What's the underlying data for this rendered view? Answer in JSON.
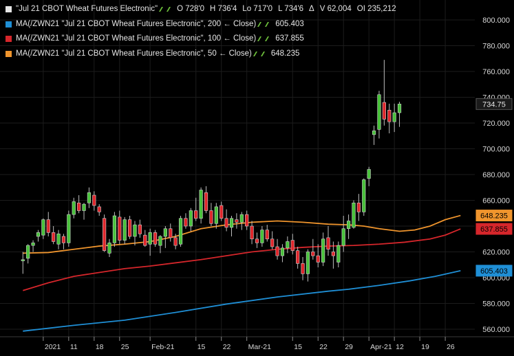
{
  "legend": {
    "main": {
      "label": "\"Jul 21 CBOT Wheat Futures Electronic\"",
      "open": "O 728'0",
      "high": "H 736'4",
      "low": "Lo 717'0",
      "last": "L 734'6",
      "change_symbol": "Δ",
      "volume": "V 62,004",
      "open_interest": "OI 235,212",
      "color": "#e6e6e6"
    },
    "ma200": {
      "label": "MA(/ZWN21 \"Jul 21 CBOT Wheat Futures Electronic\", 200 ← Close)",
      "value": "605.403",
      "color": "#1f8fd6"
    },
    "ma100": {
      "label": "MA(/ZWN21 \"Jul 21 CBOT Wheat Futures Electronic\", 100 ← Close)",
      "value": "637.855",
      "color": "#d6262b"
    },
    "ma50": {
      "label": "MA(/ZWN21 \"Jul 21 CBOT Wheat Futures Electronic\", 50 ← Close)",
      "value": "648.235",
      "color": "#f0952d"
    }
  },
  "price_badges": {
    "last": {
      "text": "734.75",
      "value": 734.75,
      "bg": "#1a1a1a",
      "fg": "#e6e6e6"
    },
    "ma50": {
      "text": "648.235",
      "value": 648.235,
      "bg": "#f0952d",
      "fg": "#000000"
    },
    "ma100": {
      "text": "637.855",
      "value": 637.855,
      "bg": "#d6262b",
      "fg": "#000000"
    },
    "ma200": {
      "text": "605.403",
      "value": 605.403,
      "bg": "#1f8fd6",
      "fg": "#000000"
    }
  },
  "chart_data": {
    "type": "candlestick",
    "ylim": [
      555,
      820
    ],
    "y_ticks": [
      "560.000",
      "580.000",
      "600.000",
      "620.000",
      "640.000",
      "660.000",
      "680.000",
      "700.000",
      "720.000",
      "740.000",
      "760.000",
      "780.000",
      "800.000"
    ],
    "x_tick_labels": [
      {
        "label": "2021",
        "index": 4
      },
      {
        "label": "11",
        "index": 9
      },
      {
        "label": "18",
        "index": 14
      },
      {
        "label": "25",
        "index": 19
      },
      {
        "label": "Feb-21",
        "index": 25
      },
      {
        "label": "15",
        "index": 34
      },
      {
        "label": "22",
        "index": 39
      },
      {
        "label": "Mar-21",
        "index": 44
      },
      {
        "label": "15",
        "index": 53
      },
      {
        "label": "22",
        "index": 58
      },
      {
        "label": "29",
        "index": 63
      },
      {
        "label": "Apr-21",
        "index": 68
      },
      {
        "label": "12",
        "index": 73
      },
      {
        "label": "19",
        "index": 78
      },
      {
        "label": "26",
        "index": 83
      }
    ],
    "up_color": "#48c23a",
    "down_color": "#e0262b",
    "candles": [
      [
        613,
        620,
        603,
        614
      ],
      [
        615,
        626,
        611,
        625
      ],
      [
        625,
        629,
        620,
        627
      ],
      [
        632,
        637,
        628,
        635
      ],
      [
        633,
        646,
        630,
        645
      ],
      [
        645,
        651,
        632,
        635
      ],
      [
        635,
        640,
        626,
        628
      ],
      [
        626,
        637,
        622,
        634
      ],
      [
        632,
        634,
        622,
        627
      ],
      [
        627,
        652,
        624,
        649
      ],
      [
        649,
        662,
        646,
        659
      ],
      [
        658,
        664,
        650,
        652
      ],
      [
        652,
        658,
        645,
        657
      ],
      [
        658,
        670,
        654,
        666
      ],
      [
        664,
        667,
        652,
        656
      ],
      [
        655,
        657,
        648,
        651
      ],
      [
        646,
        649,
        620,
        621
      ],
      [
        619,
        630,
        616,
        627
      ],
      [
        627,
        651,
        624,
        648
      ],
      [
        647,
        652,
        626,
        629
      ],
      [
        629,
        647,
        626,
        645
      ],
      [
        645,
        648,
        630,
        632
      ],
      [
        632,
        644,
        625,
        641
      ],
      [
        641,
        645,
        631,
        634
      ],
      [
        633,
        637,
        624,
        625
      ],
      [
        626,
        638,
        617,
        635
      ],
      [
        635,
        637,
        624,
        626
      ],
      [
        625,
        633,
        619,
        632
      ],
      [
        632,
        640,
        623,
        638
      ],
      [
        638,
        642,
        628,
        631
      ],
      [
        631,
        634,
        622,
        625
      ],
      [
        626,
        648,
        624,
        646
      ],
      [
        646,
        650,
        638,
        640
      ],
      [
        640,
        654,
        636,
        652
      ],
      [
        652,
        662,
        644,
        646
      ],
      [
        646,
        670,
        642,
        668
      ],
      [
        666,
        671,
        650,
        652
      ],
      [
        652,
        658,
        640,
        642
      ],
      [
        642,
        658,
        638,
        655
      ],
      [
        656,
        659,
        644,
        646
      ],
      [
        646,
        653,
        636,
        639
      ],
      [
        639,
        648,
        632,
        646
      ],
      [
        645,
        650,
        638,
        643
      ],
      [
        643,
        651,
        637,
        649
      ],
      [
        649,
        652,
        637,
        640
      ],
      [
        640,
        644,
        626,
        630
      ],
      [
        630,
        635,
        623,
        627
      ],
      [
        627,
        640,
        624,
        637
      ],
      [
        637,
        641,
        628,
        630
      ],
      [
        630,
        636,
        622,
        624
      ],
      [
        624,
        630,
        614,
        617
      ],
      [
        617,
        626,
        612,
        623
      ],
      [
        623,
        632,
        619,
        628
      ],
      [
        629,
        634,
        618,
        621
      ],
      [
        621,
        624,
        607,
        611
      ],
      [
        611,
        616,
        598,
        603
      ],
      [
        603,
        622,
        597,
        620
      ],
      [
        620,
        630,
        614,
        617
      ],
      [
        617,
        626,
        608,
        612
      ],
      [
        612,
        635,
        609,
        630
      ],
      [
        631,
        640,
        617,
        622
      ],
      [
        620,
        628,
        607,
        617
      ],
      [
        612,
        628,
        608,
        625
      ],
      [
        625,
        648,
        620,
        638
      ],
      [
        638,
        649,
        630,
        644
      ],
      [
        639,
        660,
        638,
        658
      ],
      [
        658,
        665,
        644,
        651
      ],
      [
        651,
        677,
        648,
        676
      ],
      [
        677,
        686,
        671,
        684
      ],
      [
        711,
        718,
        703,
        714
      ],
      [
        715,
        745,
        708,
        742
      ],
      [
        736,
        769,
        718,
        723
      ],
      [
        730,
        735,
        712,
        721
      ],
      [
        721,
        735,
        713,
        728
      ],
      [
        728,
        736.5,
        717,
        734.75
      ]
    ],
    "candle_x_positions": [
      0,
      1,
      2,
      3,
      4,
      5,
      6,
      7,
      8,
      9,
      10,
      11,
      12,
      13,
      14,
      15,
      16,
      17,
      18,
      19,
      20,
      21,
      22,
      23,
      24,
      25,
      26,
      27,
      28,
      29,
      30,
      31,
      32,
      33,
      34,
      35,
      36,
      37,
      38,
      39,
      40,
      41,
      42,
      43,
      44,
      45,
      46,
      47,
      48,
      49,
      50,
      51,
      52,
      53,
      54,
      55,
      56,
      57,
      58,
      59,
      60,
      61,
      62,
      63,
      64,
      65,
      66,
      67,
      68,
      69,
      70,
      71,
      72,
      73,
      74
    ],
    "series": [
      {
        "name": "MA 50",
        "color": "#f0952d",
        "points": [
          [
            0,
            619
          ],
          [
            5,
            619.5
          ],
          [
            10,
            622
          ],
          [
            15,
            624.5
          ],
          [
            20,
            626
          ],
          [
            25,
            628
          ],
          [
            30,
            632
          ],
          [
            35,
            638
          ],
          [
            40,
            641
          ],
          [
            45,
            643
          ],
          [
            50,
            644
          ],
          [
            55,
            643
          ],
          [
            60,
            641.5
          ],
          [
            64,
            641
          ],
          [
            67,
            640
          ],
          [
            70,
            638
          ],
          [
            74,
            636
          ],
          [
            77,
            637
          ],
          [
            80,
            640
          ],
          [
            83,
            645
          ],
          [
            86,
            648.235
          ]
        ]
      },
      {
        "name": "MA 100",
        "color": "#d6262b",
        "points": [
          [
            0,
            590
          ],
          [
            5,
            596
          ],
          [
            10,
            601
          ],
          [
            15,
            604
          ],
          [
            20,
            607
          ],
          [
            25,
            609
          ],
          [
            30,
            611.5
          ],
          [
            35,
            614
          ],
          [
            40,
            617
          ],
          [
            45,
            620
          ],
          [
            50,
            622
          ],
          [
            55,
            623.5
          ],
          [
            60,
            624.5
          ],
          [
            65,
            625
          ],
          [
            70,
            626
          ],
          [
            75,
            627.5
          ],
          [
            80,
            630
          ],
          [
            83,
            633
          ],
          [
            86,
            637.855
          ]
        ]
      },
      {
        "name": "MA 200",
        "color": "#1f8fd6",
        "points": [
          [
            0,
            558.5
          ],
          [
            10,
            563
          ],
          [
            20,
            567
          ],
          [
            30,
            573
          ],
          [
            40,
            579.5
          ],
          [
            50,
            585
          ],
          [
            60,
            589.5
          ],
          [
            64,
            591
          ],
          [
            70,
            594
          ],
          [
            76,
            597.5
          ],
          [
            81,
            601
          ],
          [
            86,
            605.403
          ]
        ]
      }
    ],
    "x_index_range": [
      -4.5,
      88.8
    ]
  }
}
